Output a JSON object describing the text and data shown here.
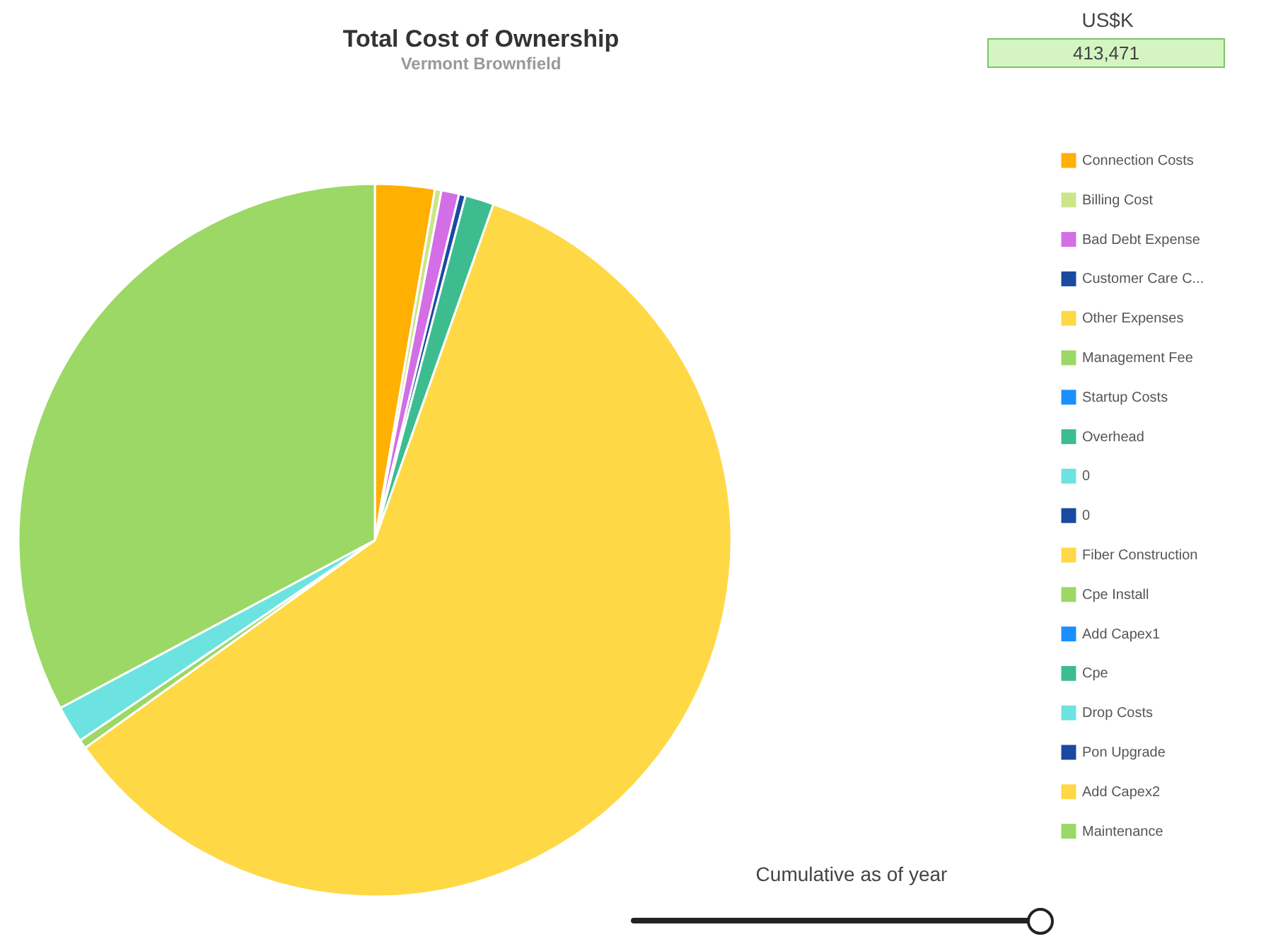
{
  "chart_data": {
    "type": "pie",
    "title": "Total Cost of Ownership",
    "subtitle": "Vermont Brownfield",
    "categories": [
      "Connection Costs",
      "Billing Cost",
      "Bad Debt Expense",
      "Customer Care C...",
      "Other Expenses",
      "Management Fee",
      "Startup Costs",
      "Overhead",
      "0",
      "0",
      "Fiber Construction",
      "Cpe Install",
      "Add Capex1",
      "Cpe",
      "Drop Costs",
      "Pon Upgrade",
      "Add Capex2",
      "Maintenance"
    ],
    "values": [
      2.7,
      0.3,
      0.8,
      0.3,
      0,
      0,
      0,
      1.3,
      0,
      0,
      59.7,
      0.4,
      0,
      0,
      1.7,
      0,
      0,
      32.8
    ],
    "colors": [
      "#ffb000",
      "#cde58a",
      "#d36ee6",
      "#1a4aa0",
      "#ffd845",
      "#9bd866",
      "#1a90ff",
      "#3dbd8f",
      "#6ce3e0",
      "#1a4aa0",
      "#ffd845",
      "#9bd866",
      "#1a90ff",
      "#3dbd8f",
      "#6ce3e0",
      "#1a4aa0",
      "#ffd845",
      "#9bd866"
    ],
    "legend": "right",
    "annotations": [
      "US$K",
      "413,471",
      "Cumulative as of year"
    ]
  }
}
